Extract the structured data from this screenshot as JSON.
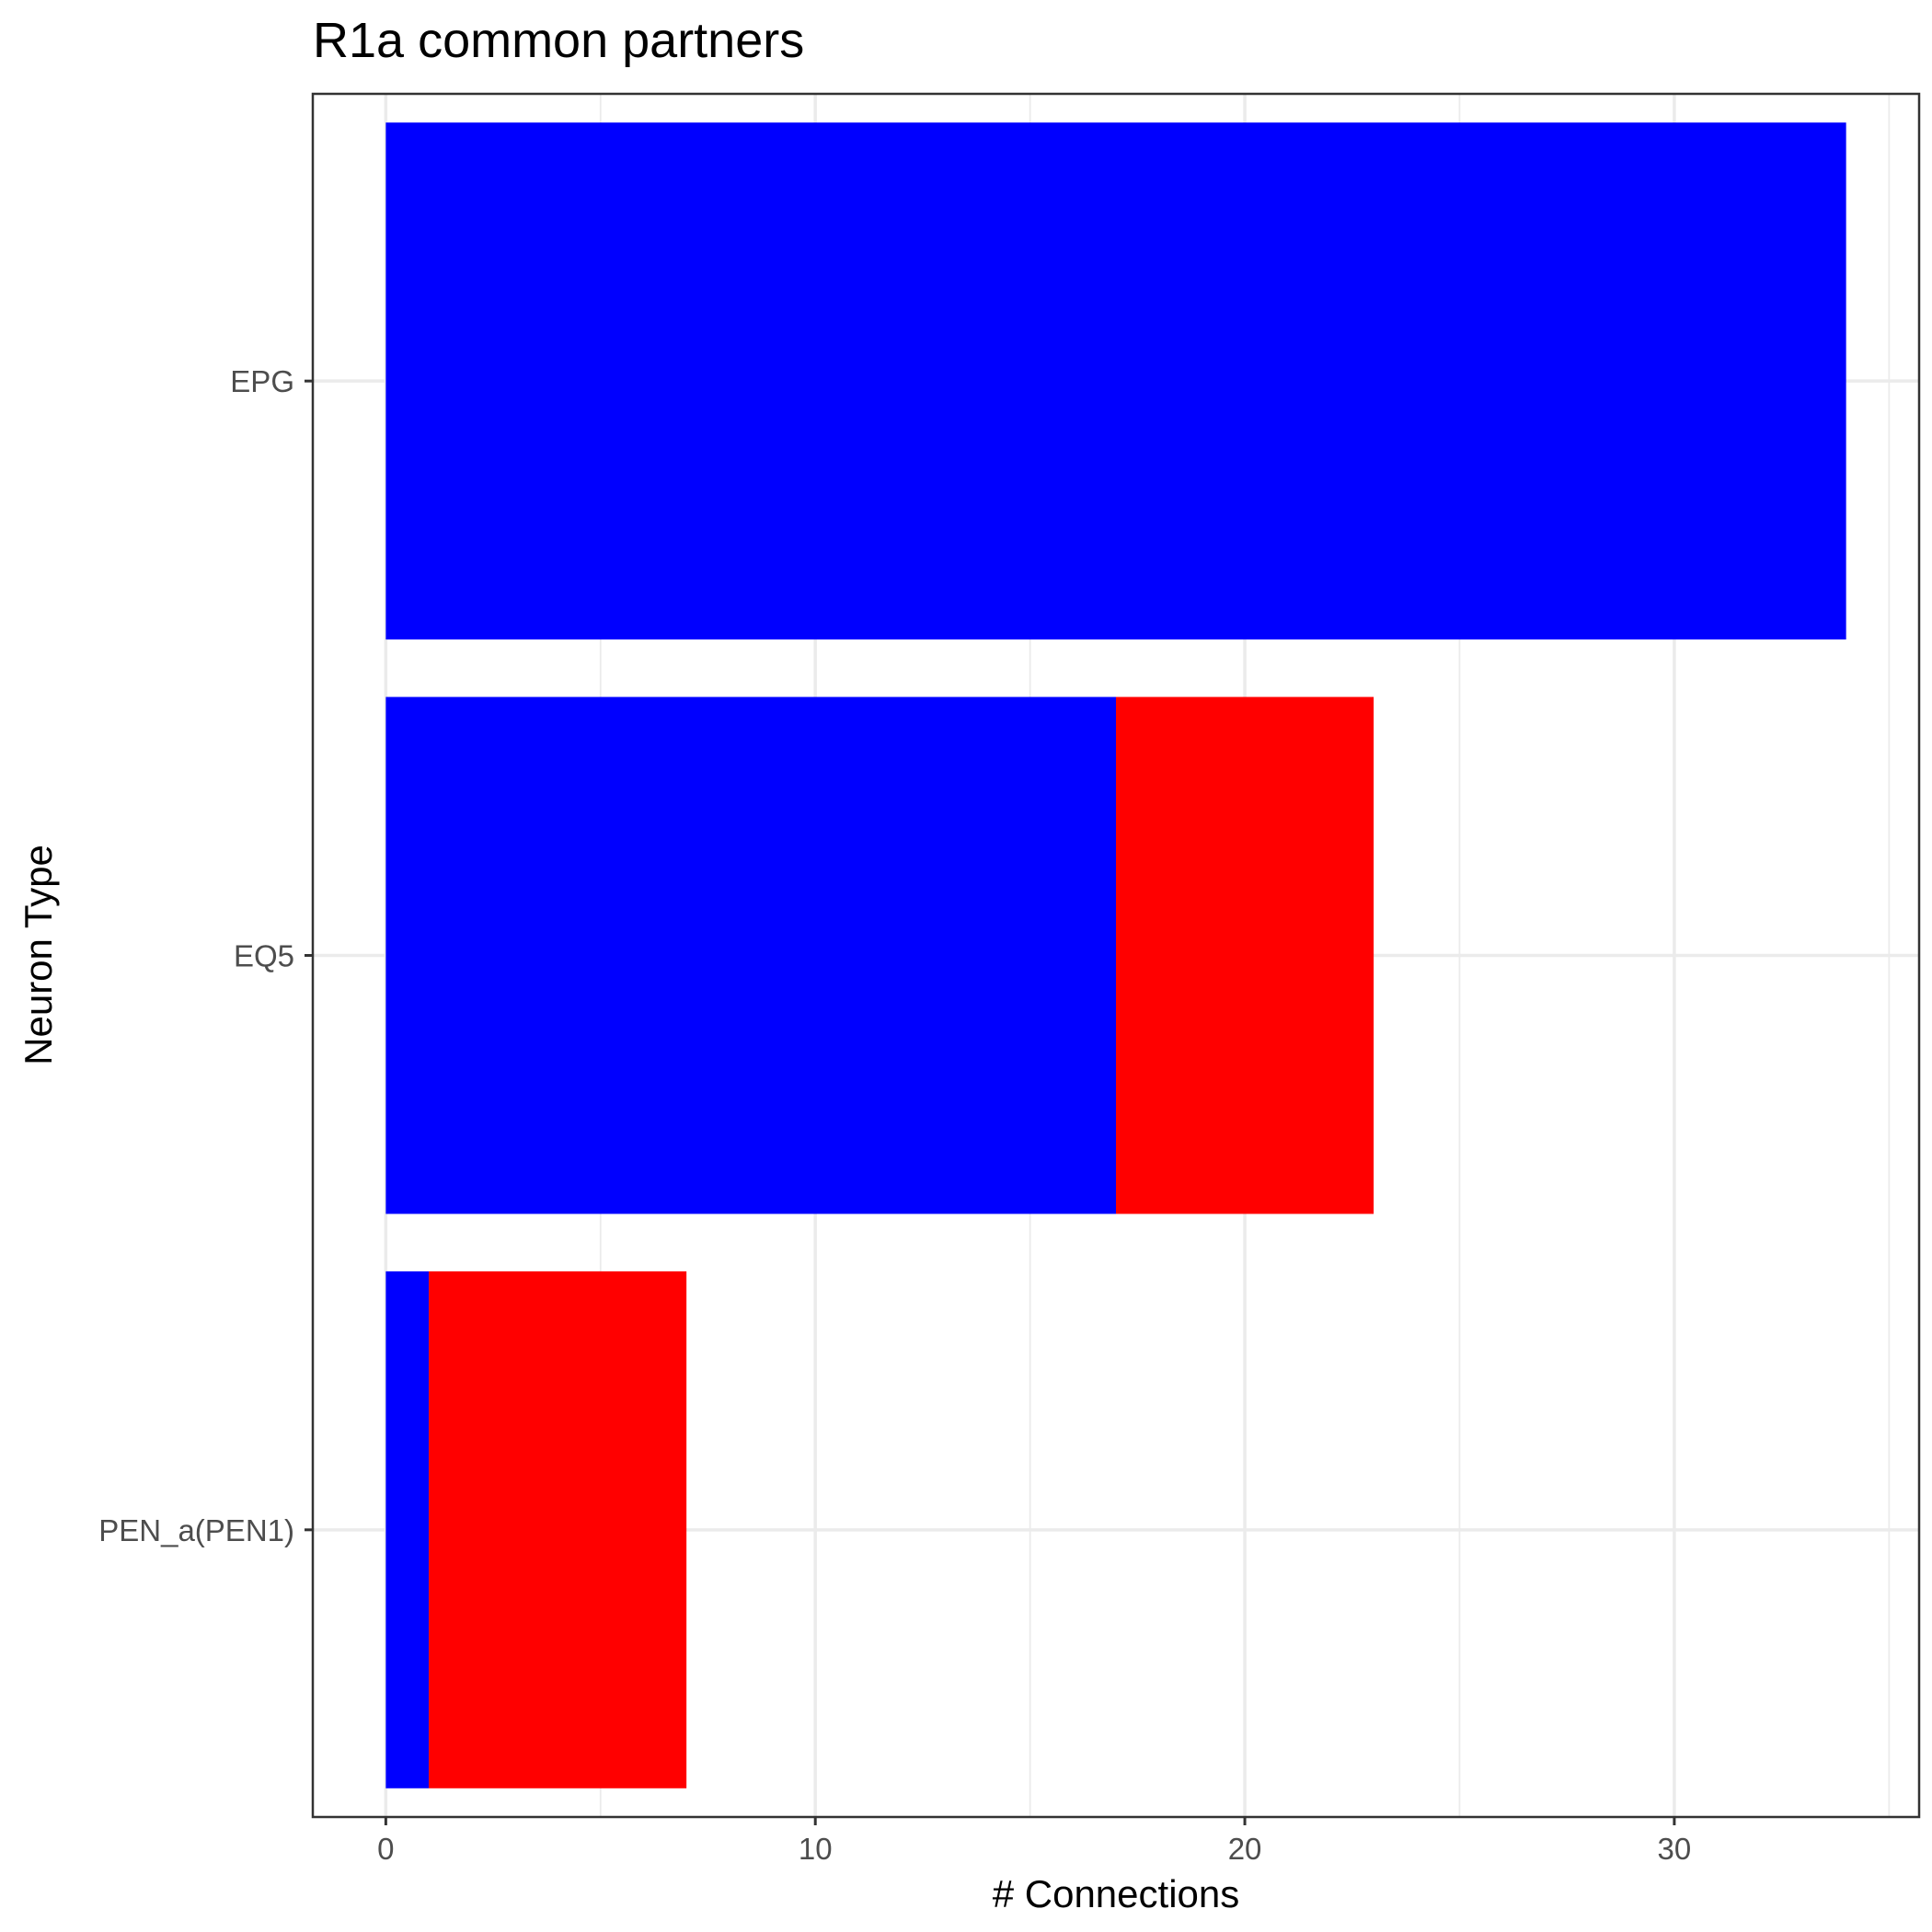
{
  "chart_data": {
    "type": "bar",
    "orientation": "horizontal",
    "stacked": true,
    "title": "R1a common partners",
    "xlabel": "# Connections",
    "ylabel": "Neuron Type",
    "categories": [
      "EPG",
      "EQ5",
      "PEN_a(PEN1)"
    ],
    "series": [
      {
        "color": "#0000ff",
        "values": [
          34,
          17,
          1
        ]
      },
      {
        "color": "#ff0000",
        "values": [
          0,
          6,
          6
        ]
      }
    ],
    "xlim": [
      -1.7,
      35.7
    ],
    "xticks": [
      0,
      10,
      20,
      30
    ],
    "xtick_labels": [
      "0",
      "10",
      "20",
      "30"
    ],
    "grid": true
  }
}
